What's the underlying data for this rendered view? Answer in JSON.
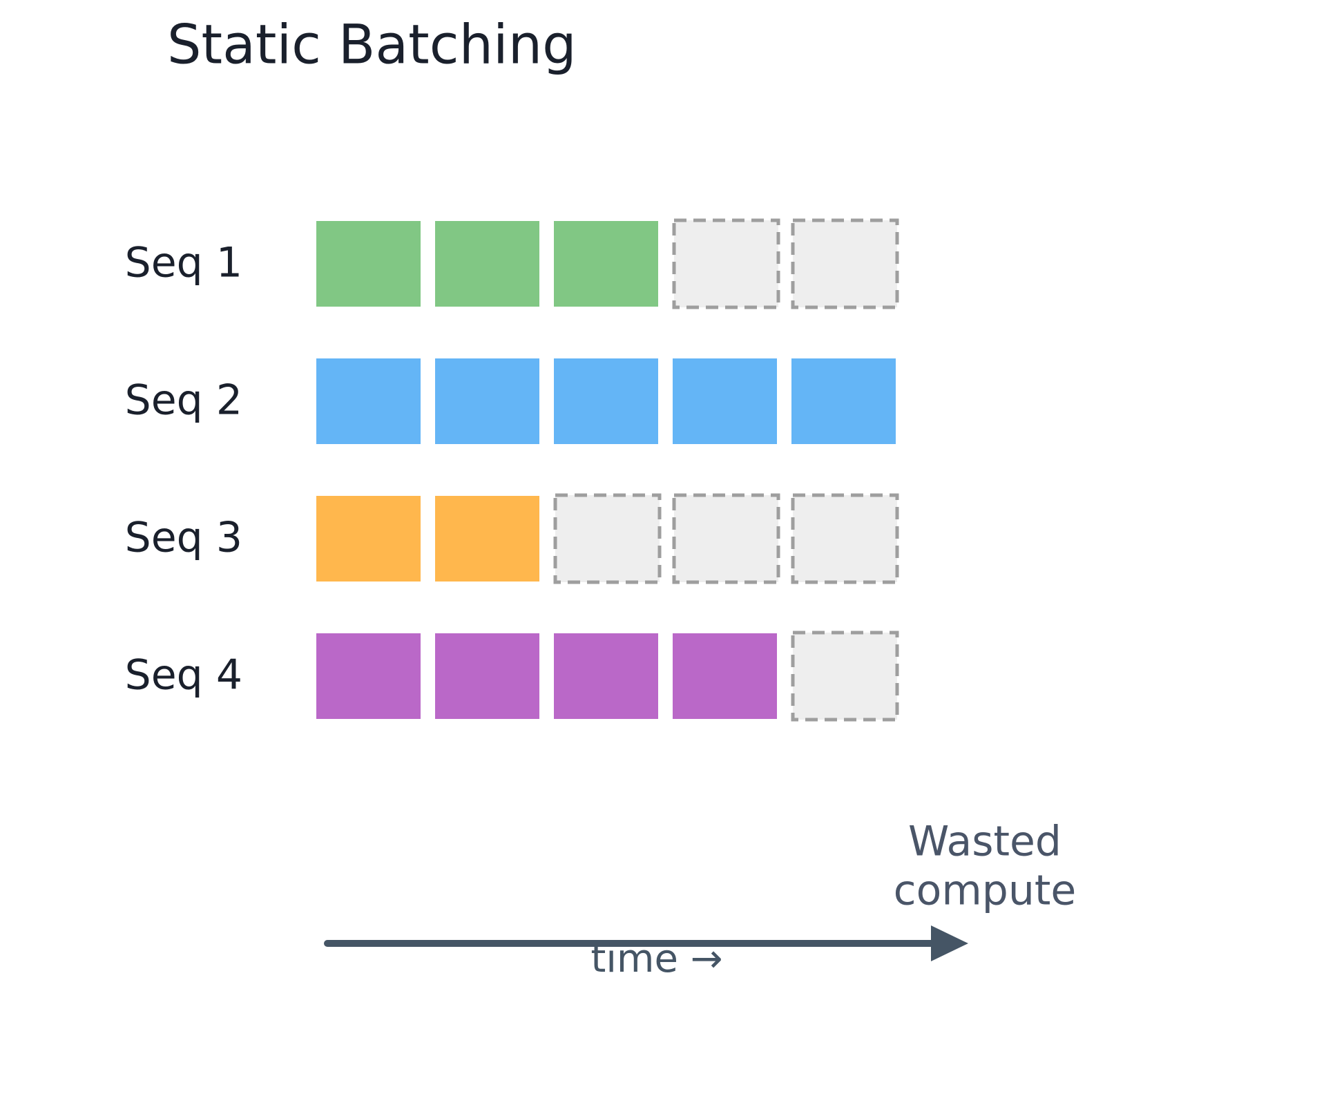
{
  "title": "Static Batching",
  "batch_length": 5,
  "rows": [
    {
      "label": "Seq 1",
      "color": "#81c784",
      "tokens": 3
    },
    {
      "label": "Seq 2",
      "color": "#64b5f6",
      "tokens": 5
    },
    {
      "label": "Seq 3",
      "color": "#ffb74d",
      "tokens": 2
    },
    {
      "label": "Seq 4",
      "color": "#ba68c8",
      "tokens": 4
    }
  ],
  "wasted_label": [
    "Wasted",
    "compute"
  ],
  "axis_label": "time →"
}
